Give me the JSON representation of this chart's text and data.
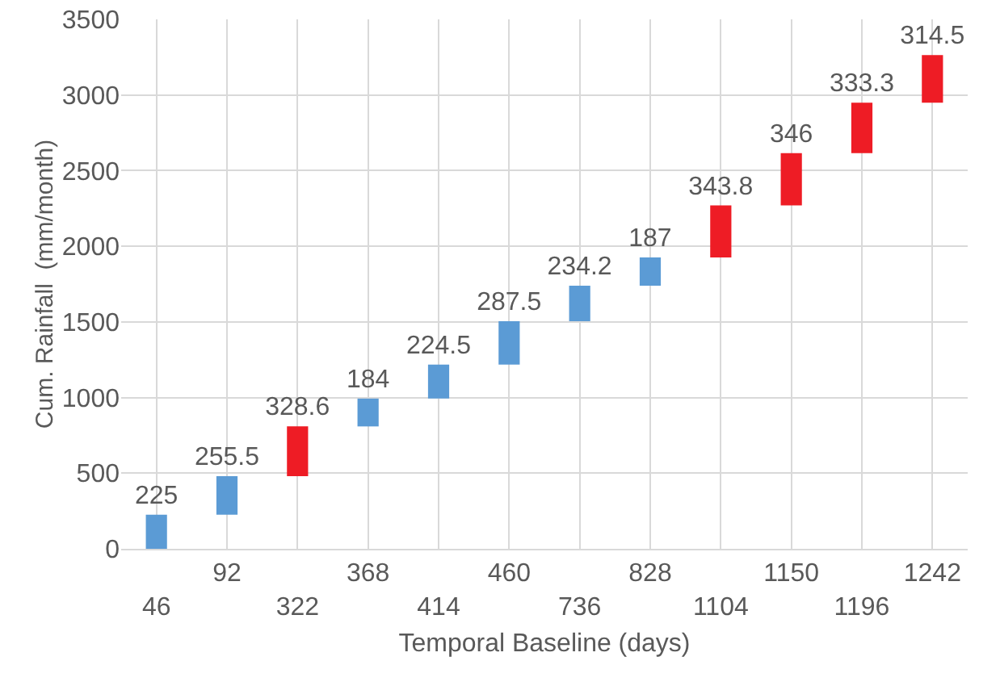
{
  "chart_data": {
    "type": "bar",
    "xlabel": "Temporal Baseline (days)",
    "ylabel": "Cum. Rainfall  (mm/month)",
    "categories": [
      "46",
      "92",
      "322",
      "368",
      "414",
      "460",
      "736",
      "828",
      "1104",
      "1150",
      "1196",
      "1242"
    ],
    "values": [
      225,
      255.5,
      328.6,
      184,
      224.5,
      287.5,
      234.2,
      187,
      343.8,
      346,
      333.3,
      314.5
    ],
    "base": [
      0,
      225,
      480.5,
      809.1,
      993.1,
      1217.6,
      1505.1,
      1739.3,
      1926.3,
      2270.1,
      2616.1,
      2949.4
    ],
    "colors": [
      "#5b9bd5",
      "#5b9bd5",
      "#ee1c25",
      "#5b9bd5",
      "#5b9bd5",
      "#5b9bd5",
      "#5b9bd5",
      "#5b9bd5",
      "#ee1c25",
      "#ee1c25",
      "#ee1c25",
      "#ee1c25"
    ],
    "ylim": [
      0,
      3500
    ],
    "yticks": [
      0,
      500,
      1000,
      1500,
      2000,
      2500,
      3000,
      3500
    ],
    "grid": true,
    "data_labels": true
  }
}
